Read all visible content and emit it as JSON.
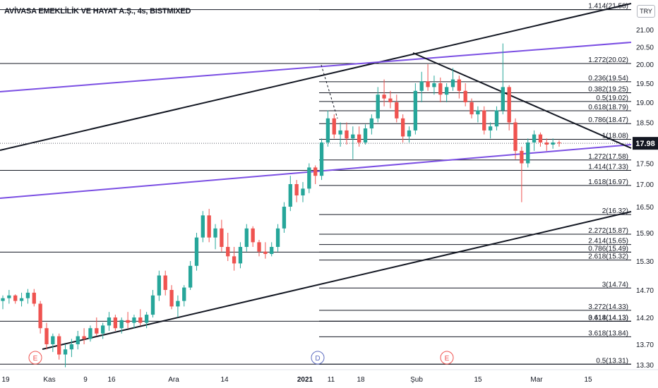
{
  "title": "AVİVASA EMEKLİLİK VE HAYAT A.Ş., 4s, BISTMIXED",
  "currency": "TRY",
  "last_price": "17.98",
  "colors": {
    "up": "#26a69a",
    "down": "#ef5350",
    "trend": "#131722",
    "channel": "#7b4fe3",
    "fib": "#131722",
    "price_badge": "#131722",
    "event": "#ef5350",
    "dividend": "#5c6bc0"
  },
  "chart_data": {
    "type": "candlestick",
    "title": "AVİVASA EMEKLİLİK VE HAYAT A.Ş., 4s, BISTMIXED",
    "xlabel": "",
    "ylabel": "",
    "ylim": [
      13.2,
      21.7
    ],
    "y_axis_ticks": [
      "21.00",
      "20.50",
      "20.00",
      "19.50",
      "19.00",
      "18.50",
      "18.00",
      "17.50",
      "17.00",
      "16.50",
      "15.90",
      "15.30",
      "14.70",
      "14.20",
      "13.70",
      "13.30"
    ],
    "x_axis_ticks": [
      "19",
      "Kas",
      "9",
      "16",
      "Ara",
      "14",
      "2021",
      "11",
      "18",
      "Şub",
      "15",
      "Mar",
      "15"
    ],
    "last_price": 17.98,
    "ohlc": [
      [
        14.5,
        14.6,
        14.35,
        14.55
      ],
      [
        14.55,
        14.7,
        14.45,
        14.6
      ],
      [
        14.6,
        14.62,
        14.45,
        14.5
      ],
      [
        14.5,
        14.65,
        14.4,
        14.55
      ],
      [
        14.55,
        14.72,
        14.45,
        14.65
      ],
      [
        14.65,
        14.72,
        14.4,
        14.45
      ],
      [
        14.45,
        14.5,
        13.9,
        14.0
      ],
      [
        14.0,
        14.1,
        13.6,
        13.7
      ],
      [
        13.7,
        13.9,
        13.55,
        13.85
      ],
      [
        13.85,
        13.9,
        13.4,
        13.5
      ],
      [
        13.5,
        13.7,
        13.25,
        13.6
      ],
      [
        13.6,
        13.8,
        13.45,
        13.7
      ],
      [
        13.7,
        13.95,
        13.6,
        13.85
      ],
      [
        13.85,
        14.0,
        13.7,
        13.8
      ],
      [
        13.8,
        14.05,
        13.75,
        14.0
      ],
      [
        14.0,
        14.2,
        13.85,
        13.9
      ],
      [
        13.9,
        14.1,
        13.8,
        14.05
      ],
      [
        14.05,
        14.3,
        13.95,
        14.2
      ],
      [
        14.2,
        14.25,
        13.95,
        14.0
      ],
      [
        14.0,
        14.2,
        13.9,
        14.15
      ],
      [
        14.15,
        14.3,
        14.0,
        14.1
      ],
      [
        14.1,
        14.25,
        14.0,
        14.2
      ],
      [
        14.2,
        14.35,
        14.05,
        14.1
      ],
      [
        14.1,
        14.3,
        14.0,
        14.25
      ],
      [
        14.25,
        14.7,
        14.2,
        14.6
      ],
      [
        14.6,
        15.1,
        14.5,
        15.0
      ],
      [
        15.0,
        15.1,
        14.6,
        14.7
      ],
      [
        14.7,
        14.8,
        14.35,
        14.4
      ],
      [
        14.4,
        14.6,
        14.2,
        14.5
      ],
      [
        14.5,
        14.8,
        14.4,
        14.75
      ],
      [
        14.75,
        15.3,
        14.7,
        15.2
      ],
      [
        15.2,
        15.9,
        15.1,
        15.8
      ],
      [
        15.8,
        16.4,
        15.7,
        16.3
      ],
      [
        16.3,
        16.45,
        15.7,
        15.8
      ],
      [
        15.8,
        16.1,
        15.55,
        16.0
      ],
      [
        16.0,
        16.2,
        15.5,
        15.6
      ],
      [
        15.6,
        15.9,
        15.3,
        15.4
      ],
      [
        15.4,
        15.6,
        15.1,
        15.25
      ],
      [
        15.25,
        15.7,
        15.15,
        15.6
      ],
      [
        15.6,
        16.1,
        15.5,
        16.0
      ],
      [
        16.0,
        16.05,
        15.6,
        15.7
      ],
      [
        15.7,
        15.75,
        15.4,
        15.5
      ],
      [
        15.5,
        15.7,
        15.35,
        15.45
      ],
      [
        15.45,
        15.7,
        15.4,
        15.6
      ],
      [
        15.6,
        16.1,
        15.5,
        16.0
      ],
      [
        16.0,
        16.6,
        15.9,
        16.5
      ],
      [
        16.5,
        17.2,
        16.4,
        17.0
      ],
      [
        17.0,
        17.1,
        16.6,
        16.75
      ],
      [
        16.75,
        17.05,
        16.6,
        16.9
      ],
      [
        16.9,
        17.5,
        16.8,
        17.4
      ],
      [
        17.4,
        17.45,
        17.0,
        17.2
      ],
      [
        17.2,
        18.1,
        17.1,
        18.0
      ],
      [
        18.0,
        18.8,
        17.9,
        18.6
      ],
      [
        18.6,
        18.7,
        18.1,
        18.2
      ],
      [
        18.2,
        18.5,
        17.9,
        18.3
      ],
      [
        18.3,
        18.5,
        17.95,
        18.1
      ],
      [
        18.1,
        18.4,
        17.6,
        18.2
      ],
      [
        18.2,
        18.4,
        17.9,
        18.0
      ],
      [
        18.0,
        18.45,
        17.95,
        18.35
      ],
      [
        18.35,
        18.7,
        18.2,
        18.6
      ],
      [
        18.6,
        19.4,
        18.5,
        19.2
      ],
      [
        19.2,
        19.6,
        18.9,
        19.1
      ],
      [
        19.1,
        19.3,
        18.85,
        19.0
      ],
      [
        19.0,
        19.2,
        18.5,
        18.6
      ],
      [
        18.6,
        18.7,
        18.0,
        18.15
      ],
      [
        18.15,
        18.4,
        18.0,
        18.3
      ],
      [
        18.3,
        19.5,
        18.2,
        19.3
      ],
      [
        19.3,
        19.8,
        19.0,
        19.55
      ],
      [
        19.55,
        20.0,
        19.3,
        19.4
      ],
      [
        19.4,
        19.7,
        19.2,
        19.5
      ],
      [
        19.5,
        19.65,
        19.0,
        19.2
      ],
      [
        19.2,
        19.5,
        19.0,
        19.4
      ],
      [
        19.4,
        19.9,
        19.3,
        19.6
      ],
      [
        19.6,
        19.7,
        19.1,
        19.3
      ],
      [
        19.3,
        19.5,
        18.9,
        19.0
      ],
      [
        19.0,
        19.1,
        18.6,
        18.7
      ],
      [
        18.7,
        18.9,
        18.5,
        18.8
      ],
      [
        18.8,
        18.9,
        18.2,
        18.3
      ],
      [
        18.3,
        18.5,
        18.1,
        18.4
      ],
      [
        18.4,
        18.9,
        18.3,
        18.8
      ],
      [
        18.8,
        20.6,
        18.7,
        19.4
      ],
      [
        19.4,
        19.45,
        18.3,
        18.5
      ],
      [
        18.5,
        18.6,
        17.6,
        17.8
      ],
      [
        17.8,
        17.9,
        16.6,
        17.5
      ],
      [
        17.5,
        18.1,
        17.4,
        18.0
      ],
      [
        18.0,
        18.3,
        17.8,
        18.2
      ],
      [
        18.2,
        18.25,
        17.9,
        18.0
      ],
      [
        18.0,
        18.1,
        17.8,
        17.95
      ],
      [
        17.95,
        18.1,
        17.85,
        18.0
      ],
      [
        18.0,
        18.05,
        17.9,
        17.98
      ]
    ],
    "fibonacci_levels": [
      {
        "label": "1.414(21.58)",
        "value": 21.58
      },
      {
        "label": "1.272(20.02)",
        "value": 20.02
      },
      {
        "label": "0.236(19.54)",
        "value": 19.54
      },
      {
        "label": "0.382(19.25)",
        "value": 19.25
      },
      {
        "label": "0.5(19.02)",
        "value": 19.02
      },
      {
        "label": "0.618(18.79)",
        "value": 18.79
      },
      {
        "label": "0.786(18.47)",
        "value": 18.47
      },
      {
        "label": "1(18.08)",
        "value": 18.08
      },
      {
        "label": "1.272(17.58)",
        "value": 17.58
      },
      {
        "label": "1.414(17.33)",
        "value": 17.33
      },
      {
        "label": "1.618(16.97)",
        "value": 16.97
      },
      {
        "label": "2(16.32)",
        "value": 16.32
      },
      {
        "label": "2.272(15.87)",
        "value": 15.87
      },
      {
        "label": "2.414(15.65)",
        "value": 15.65
      },
      {
        "label": "0.786(15.49)",
        "value": 15.49
      },
      {
        "label": "2.618(15.32)",
        "value": 15.32
      },
      {
        "label": "3(14.74)",
        "value": 14.74
      },
      {
        "label": "3.272(14.33)",
        "value": 14.33
      },
      {
        "label": "3.414(14.13)",
        "value": 14.13
      },
      {
        "label": "0.618(14.13)",
        "value": 14.13
      },
      {
        "label": "3.618(13.84)",
        "value": 13.84
      },
      {
        "label": "0.5(13.31)",
        "value": 13.31
      }
    ],
    "events": [
      {
        "label": "E",
        "kind": "earnings",
        "near": "Kas"
      },
      {
        "label": "D",
        "kind": "dividend",
        "near": "2021"
      },
      {
        "label": "E",
        "kind": "earnings",
        "near": "Şub"
      }
    ]
  }
}
